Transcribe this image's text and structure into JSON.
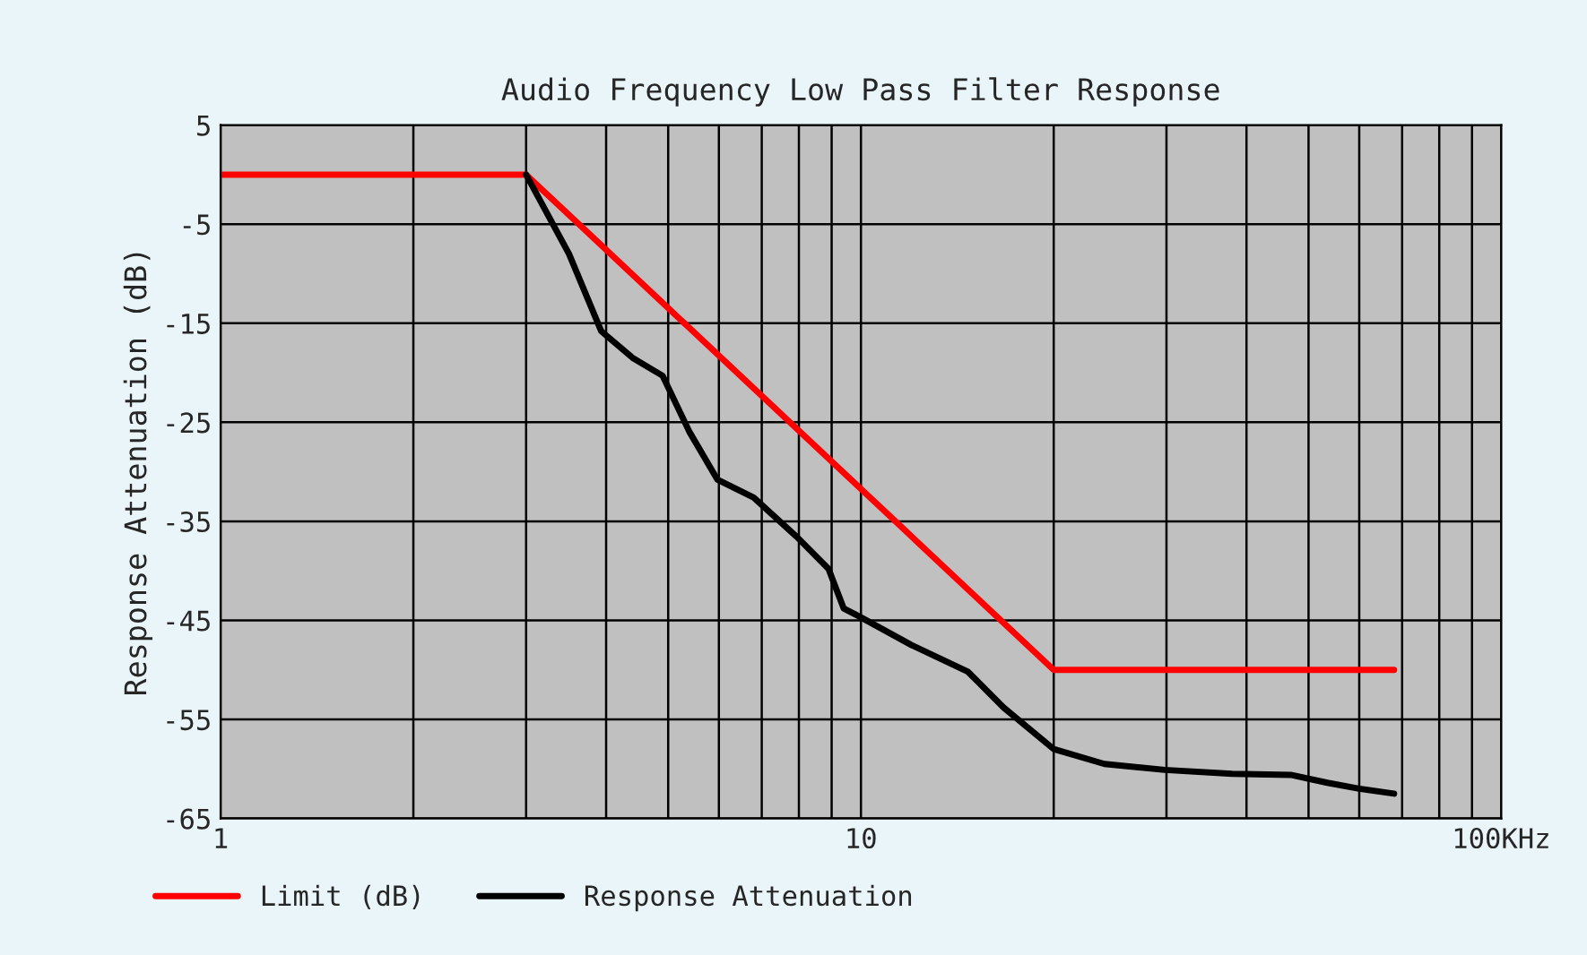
{
  "chart_data": {
    "type": "line",
    "title": "Audio Frequency Low Pass Filter Response",
    "ylabel": "Response Attenuation (dB)",
    "log": "x",
    "grid": true,
    "legend": "bottom",
    "marker": "none",
    "line_style": "solid",
    "xlim": [
      1,
      100
    ],
    "xticks": [
      1,
      {
        "value": 2,
        "label": null
      },
      {
        "value": 3,
        "label": null
      },
      {
        "value": 4,
        "label": null
      },
      {
        "value": 5,
        "label": null
      },
      {
        "value": 6,
        "label": null
      },
      {
        "value": 7,
        "label": null
      },
      {
        "value": 8,
        "label": null
      },
      {
        "value": 9,
        "label": null
      },
      10,
      {
        "value": 20,
        "label": null
      },
      {
        "value": 30,
        "label": null
      },
      {
        "value": 40,
        "label": null
      },
      {
        "value": 50,
        "label": null
      },
      {
        "value": 60,
        "label": null
      },
      {
        "value": 70,
        "label": null
      },
      {
        "value": 80,
        "label": null
      },
      {
        "value": 90,
        "label": null
      },
      {
        "value": 100,
        "label": "100KHz"
      }
    ],
    "ylim": [
      -65,
      5
    ],
    "yticks": [
      5,
      -5,
      -15,
      -25,
      -35,
      -45,
      -55,
      -65
    ],
    "series": [
      {
        "name": "Limit (dB)",
        "color": "#ff0000",
        "x": [
          1,
          3,
          20,
          68
        ],
        "values": [
          0,
          0,
          -50,
          -50
        ]
      },
      {
        "name": "Response Attenuation",
        "color": "#000000",
        "x": [
          3,
          3.5,
          3.93,
          4.4,
          4.9,
          5.4,
          5.97,
          6.8,
          7.95,
          8.9,
          9.4,
          10,
          12,
          14.7,
          16.7,
          20,
          24,
          29.8,
          38,
          46.9,
          53.5,
          60,
          68
        ],
        "values": [
          0,
          -8,
          -15.8,
          -18.5,
          -20.3,
          -26,
          -30.8,
          -32.6,
          -36.6,
          -39.8,
          -43.8,
          -44.7,
          -47.5,
          -50.2,
          -53.8,
          -58,
          -59.5,
          -60.1,
          -60.5,
          -60.6,
          -61.4,
          -62,
          -62.5
        ]
      }
    ]
  }
}
